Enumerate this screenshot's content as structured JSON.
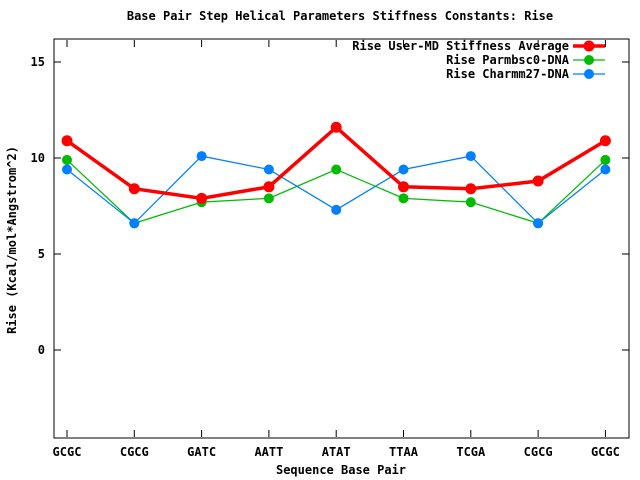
{
  "chart_data": {
    "type": "line",
    "title": "Base Pair Step Helical Parameters Stiffness Constants: Rise",
    "xlabel": "Sequence Base Pair",
    "ylabel": "Rise (Kcal/mol*Angstrom^2)",
    "categories": [
      "GCGC",
      "CGCG",
      "GATC",
      "AATT",
      "ATAT",
      "TTAA",
      "TCGA",
      "CGCG",
      "GCGC"
    ],
    "yticks": [
      0,
      5,
      10,
      15
    ],
    "ytick_labels": [
      "0",
      "5",
      "10",
      "15"
    ],
    "ylim": [
      -4.6,
      16.2
    ],
    "grid": false,
    "legend_position": "top-right-inside",
    "background_color": "#ffffff",
    "axis_color": "#000000",
    "series": [
      {
        "name": "Rise User-MD Stiffness Average",
        "color": "#ff0000",
        "marker": "filled-circle",
        "values": [
          10.9,
          8.4,
          7.9,
          8.5,
          11.6,
          8.5,
          8.4,
          8.8,
          10.9
        ]
      },
      {
        "name": "Rise Parmbsc0-DNA",
        "color": "#00bb00",
        "marker": "filled-circle",
        "values": [
          9.9,
          6.6,
          7.7,
          7.9,
          9.4,
          7.9,
          7.7,
          6.6,
          9.9
        ]
      },
      {
        "name": "Rise Charmm27-DNA",
        "color": "#0080ff",
        "marker": "filled-circle",
        "values": [
          9.4,
          6.6,
          10.1,
          9.4,
          7.3,
          9.4,
          10.1,
          6.6,
          9.4
        ]
      }
    ]
  }
}
